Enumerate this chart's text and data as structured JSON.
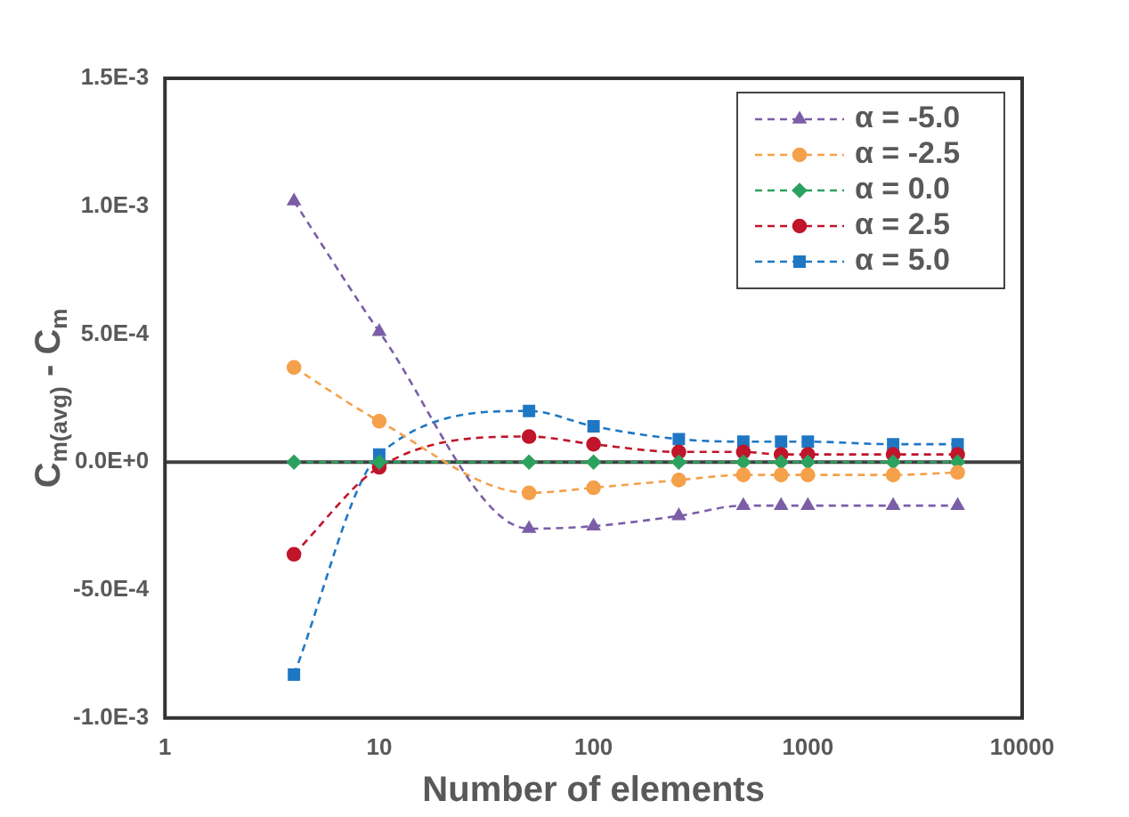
{
  "chart_data": {
    "type": "line",
    "xlabel": "Number of elements",
    "ylabel": "C$_{m(avg)}$ - C$_{m}$",
    "x": [
      4,
      10,
      50,
      100,
      250,
      500,
      750,
      1000,
      2500,
      5000
    ],
    "series": [
      {
        "name": "α = -5.0",
        "color": "#7b5ea7",
        "marker": "triangle",
        "values": [
          0.00102,
          0.00051,
          -0.00026,
          -0.00025,
          -0.00021,
          -0.00017,
          -0.00017,
          -0.00017,
          -0.00017,
          -0.00017
        ]
      },
      {
        "name": "α = -2.5",
        "color": "#f5a04a",
        "marker": "circle",
        "values": [
          0.00037,
          0.00016,
          -0.00012,
          -0.0001,
          -7e-05,
          -5e-05,
          -5e-05,
          -5e-05,
          -5e-05,
          -4e-05
        ]
      },
      {
        "name": "α = 0.0",
        "color": "#2ca25f",
        "marker": "diamond",
        "values": [
          0,
          0,
          0,
          0,
          0,
          0,
          0,
          0,
          0,
          0
        ]
      },
      {
        "name": "α = 2.5",
        "color": "#c0152a",
        "marker": "circle",
        "values": [
          -0.00036,
          -2e-05,
          0.0001,
          7e-05,
          4e-05,
          4e-05,
          3e-05,
          3e-05,
          3e-05,
          3e-05
        ]
      },
      {
        "name": "α = 5.0",
        "color": "#1f77c4",
        "marker": "square",
        "values": [
          -0.00083,
          3e-05,
          0.0002,
          0.00014,
          9e-05,
          8e-05,
          8e-05,
          8e-05,
          7e-05,
          7e-05
        ]
      }
    ],
    "log": "x",
    "xlim": [
      1,
      10000
    ],
    "xticks": [
      1,
      10,
      100,
      1000,
      10000
    ],
    "ylim": [
      -0.001,
      0.0015
    ],
    "yticks": [
      {
        "value": -0.001,
        "label": "-1.0E-3"
      },
      {
        "value": -0.0005,
        "label": "-5.0E-4"
      },
      {
        "value": 0,
        "label": "0.0E+0"
      },
      {
        "value": 0.0005,
        "label": "5.0E-4"
      },
      {
        "value": 0.001,
        "label": "1.0E-3"
      },
      {
        "value": 0.0015,
        "label": "1.5E-3"
      }
    ],
    "ref_lines": [
      {
        "axis": "y",
        "value": 0,
        "color": "#404040"
      }
    ],
    "grid": false,
    "legend": "top right",
    "line_style": "dashed"
  }
}
